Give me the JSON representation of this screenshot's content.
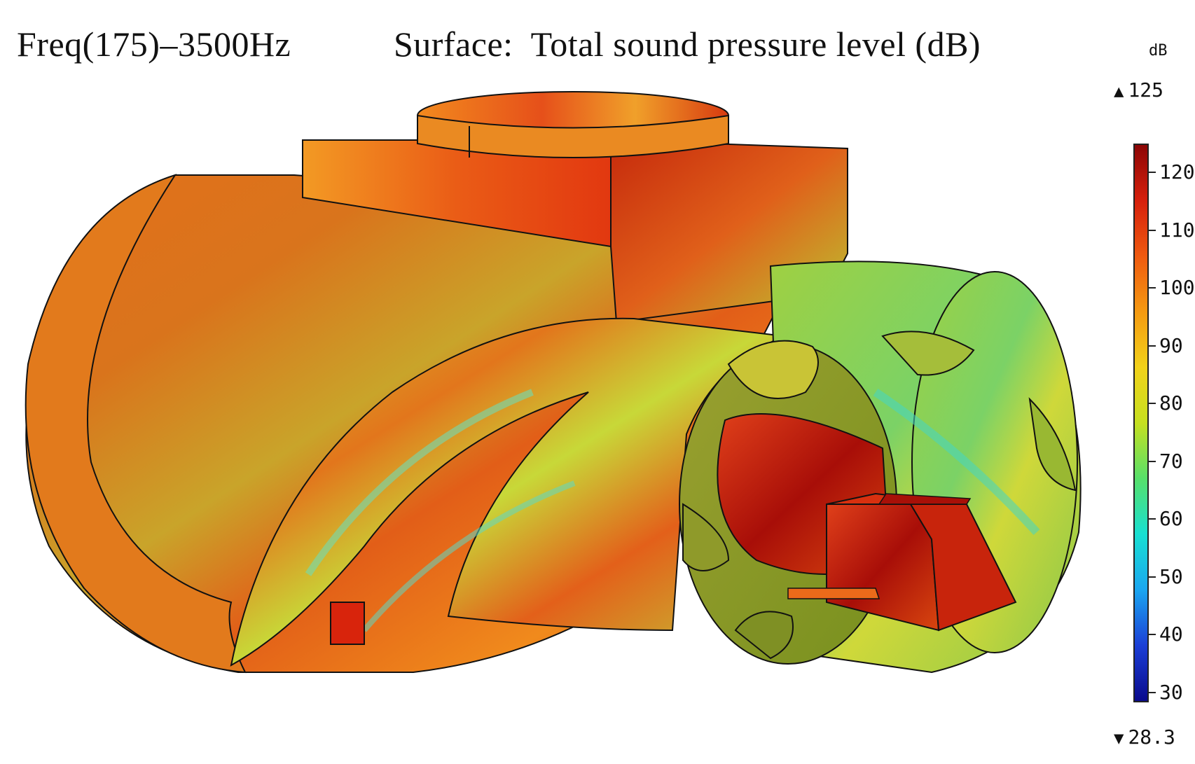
{
  "header": {
    "frequency": "Freq(175)–3500Hz",
    "surface": "Surface:  Total sound pressure level (dB)"
  },
  "legend": {
    "unit": "dB",
    "max": "125",
    "min": "28.3",
    "max_value": 125,
    "min_value": 28.3,
    "ticks": [
      120,
      110,
      100,
      90,
      80,
      70,
      60,
      50,
      40,
      30
    ],
    "colormap": [
      "#0a0a8c",
      "#1b3fd6",
      "#1aa6f0",
      "#18e0d2",
      "#57e06a",
      "#c6e020",
      "#f2d21a",
      "#f59a12",
      "#ef5a10",
      "#d6200c",
      "#8c0606"
    ]
  }
}
